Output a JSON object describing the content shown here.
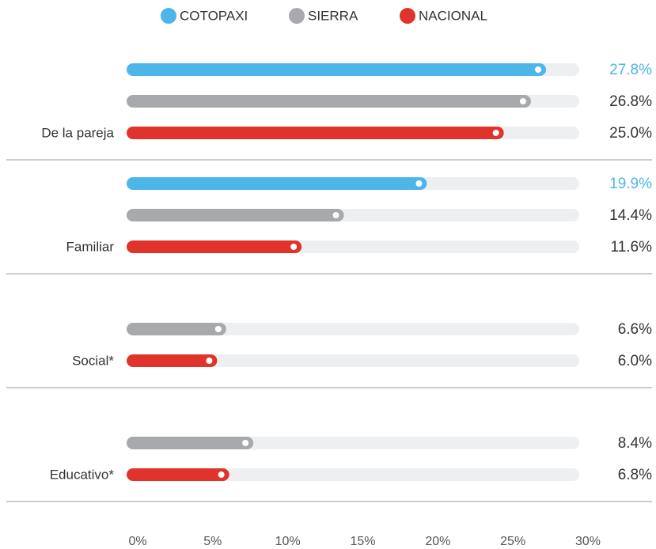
{
  "chart_data": {
    "type": "bar",
    "orientation": "horizontal",
    "categories": [
      "De la pareja",
      "Familiar",
      "Social*",
      "Educativo*"
    ],
    "series": [
      {
        "name": "COTOPAXI",
        "color": "#4db6e8",
        "label_color": "#4db6e8",
        "values": [
          27.8,
          19.9,
          null,
          null
        ],
        "value_labels": [
          "27.8%",
          "19.9%",
          null,
          null
        ]
      },
      {
        "name": "SIERRA",
        "color": "#a7a9ac",
        "label_color": "#333333",
        "values": [
          26.8,
          14.4,
          6.6,
          8.4
        ],
        "value_labels": [
          "26.8%",
          "14.4%",
          "6.6%",
          "8.4%"
        ]
      },
      {
        "name": "NACIONAL",
        "color": "#e0332c",
        "label_color": "#333333",
        "values": [
          25.0,
          11.6,
          6.0,
          6.8
        ],
        "value_labels": [
          "25.0%",
          "11.6%",
          "6.0%",
          "6.8%"
        ]
      }
    ],
    "xlim": [
      0,
      30
    ],
    "xticks": [
      {
        "value": 0,
        "label": "0%"
      },
      {
        "value": 5,
        "label": "5%"
      },
      {
        "value": 10,
        "label": "10%"
      },
      {
        "value": 15,
        "label": "15%"
      },
      {
        "value": 20,
        "label": "20%"
      },
      {
        "value": 25,
        "label": "25%"
      },
      {
        "value": 30,
        "label": "30%"
      }
    ],
    "legend": "top"
  }
}
